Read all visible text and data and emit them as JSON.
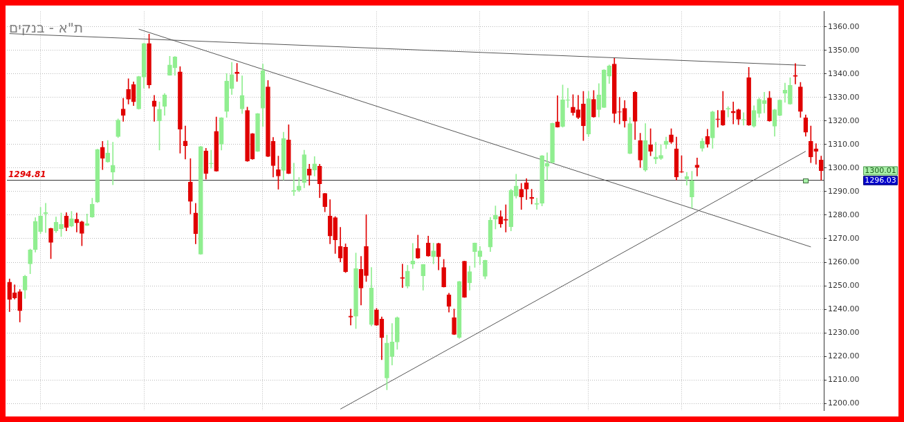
{
  "chart_data": {
    "type": "candlestick",
    "title": "ת\"א - בנקים",
    "categories": [
      null,
      null,
      null,
      null,
      null,
      null,
      null,
      null,
      null,
      null,
      null,
      null,
      null,
      null,
      null,
      null,
      null,
      null,
      null,
      null,
      null,
      null,
      null,
      null,
      null,
      null,
      null,
      null,
      null,
      null,
      null,
      null,
      null,
      null,
      null,
      null,
      null,
      null,
      null,
      null,
      null,
      null,
      null,
      null,
      null,
      null,
      null,
      null,
      null,
      null,
      null,
      null,
      null,
      null,
      null,
      null,
      null,
      null,
      null,
      null,
      null,
      null,
      null,
      null,
      null,
      null,
      null,
      null,
      null,
      null,
      null,
      null,
      null,
      null,
      null,
      null,
      null,
      null,
      null,
      null,
      null,
      null,
      null,
      null,
      null,
      null,
      null,
      null,
      null,
      null,
      null,
      null,
      null,
      null,
      null,
      null,
      null,
      null,
      null,
      null,
      null,
      null,
      null,
      null,
      null,
      null,
      null,
      null,
      null,
      null,
      null,
      null,
      null,
      null,
      null,
      null,
      null,
      null,
      null,
      null,
      null,
      null,
      null,
      null,
      null,
      null,
      null,
      null,
      null,
      null,
      null,
      null,
      null,
      null,
      null,
      null,
      null,
      null,
      null,
      null,
      null,
      null,
      null,
      null,
      null,
      null,
      null,
      null,
      null,
      null,
      null,
      null,
      null,
      null,
      null,
      null,
      null,
      null
    ],
    "ohlc": [
      [
        1251.5,
        1252.9,
        1239.0,
        1244.2
      ],
      [
        1247.0,
        1250.4,
        1244.3,
        1244.8
      ],
      [
        1247.5,
        1248.4,
        1234.6,
        1239.4
      ],
      [
        1248.1,
        1254.5,
        1244.6,
        1254.0
      ],
      [
        1259.3,
        1265.6,
        1255.1,
        1265.3
      ],
      [
        1265.4,
        1278.9,
        1264.3,
        1277.4
      ],
      [
        1273.0,
        1283.3,
        1272.2,
        1279.6
      ],
      [
        1280.5,
        1285.0,
        1272.6,
        1281.1
      ],
      [
        1274.3,
        1274.5,
        1261.5,
        1268.4
      ],
      [
        1273.3,
        1279.2,
        1272.6,
        1277.0
      ],
      [
        1274.2,
        1280.9,
        1270.9,
        1276.1
      ],
      [
        1279.6,
        1281.1,
        1273.3,
        1274.8
      ],
      [
        1275.3,
        1281.6,
        1275.0,
        1278.5
      ],
      [
        1278.3,
        1280.9,
        1272.8,
        1276.7
      ],
      [
        1277.2,
        1277.5,
        1267.0,
        1272.2
      ],
      [
        1275.6,
        1280.5,
        1275.5,
        1276.4
      ],
      [
        1279.2,
        1287.2,
        1279.0,
        1284.7
      ],
      [
        1285.5,
        1308.0,
        1285.3,
        1307.9
      ],
      [
        1308.8,
        1311.3,
        1299.3,
        1304.1
      ],
      [
        1302.6,
        1311.7,
        1302.4,
        1306.4
      ],
      [
        1298.2,
        1311.0,
        1292.9,
        1301.2
      ],
      [
        1313.4,
        1320.9,
        1312.9,
        1320.4
      ],
      [
        1325.1,
        1329.6,
        1319.8,
        1322.4
      ],
      [
        1333.4,
        1337.9,
        1327.2,
        1329.2
      ],
      [
        1335.5,
        1336.6,
        1326.5,
        1328.1
      ],
      [
        1325.1,
        1339.0,
        1325.0,
        1338.9
      ],
      [
        1338.6,
        1353.0,
        1333.9,
        1352.9
      ],
      [
        1352.9,
        1356.9,
        1333.9,
        1335.3
      ],
      [
        1328.5,
        1330.9,
        1319.8,
        1326.2
      ],
      [
        1320.0,
        1328.1,
        1307.6,
        1325.0
      ],
      [
        1326.2,
        1331.7,
        1322.4,
        1331.1
      ],
      [
        1339.4,
        1347.5,
        1339.4,
        1343.8
      ],
      [
        1342.5,
        1347.4,
        1339.4,
        1347.2
      ],
      [
        1340.9,
        1343.1,
        1306.3,
        1316.5
      ],
      [
        1311.5,
        1317.9,
        1303.8,
        1309.5
      ],
      [
        1294.1,
        1304.0,
        1280.5,
        1285.8
      ],
      [
        1280.9,
        1285.0,
        1267.8,
        1272.1
      ],
      [
        1263.4,
        1309.3,
        1263.3,
        1309.1
      ],
      [
        1307.3,
        1308.4,
        1295.3,
        1297.7
      ],
      [
        1301.8,
        1307.6,
        1299.9,
        1302.1
      ],
      [
        1315.6,
        1321.7,
        1298.6,
        1298.7
      ],
      [
        1310.1,
        1321.5,
        1307.6,
        1321.3
      ],
      [
        1324.0,
        1340.1,
        1321.5,
        1337.0
      ],
      [
        1333.7,
        1344.9,
        1331.2,
        1339.7
      ],
      [
        1340.7,
        1344.5,
        1336.8,
        1340.1
      ],
      [
        1325.1,
        1339.2,
        1323.1,
        1330.9
      ],
      [
        1324.5,
        1325.9,
        1302.8,
        1302.9
      ],
      [
        1314.6,
        1314.7,
        1303.7,
        1303.8
      ],
      [
        1307.1,
        1323.2,
        1307.0,
        1323.1
      ],
      [
        1325.4,
        1344.2,
        1317.6,
        1341.4
      ],
      [
        1334.5,
        1337.2,
        1304.8,
        1304.9
      ],
      [
        1311.3,
        1313.0,
        1296.2,
        1301.0
      ],
      [
        1299.3,
        1305.1,
        1291.0,
        1296.6
      ],
      [
        1299.0,
        1315.2,
        1294.9,
        1312.6
      ],
      [
        1311.9,
        1318.4,
        1297.6,
        1297.7
      ],
      [
        1290.0,
        1302.1,
        1288.3,
        1290.5
      ],
      [
        1290.5,
        1296.0,
        1290.0,
        1292.4
      ],
      [
        1293.8,
        1307.6,
        1291.6,
        1305.7
      ],
      [
        1299.6,
        1301.6,
        1292.7,
        1296.9
      ],
      [
        1299.1,
        1304.9,
        1296.6,
        1301.8
      ],
      [
        1300.8,
        1301.6,
        1287.4,
        1293.3
      ],
      [
        1289.2,
        1289.3,
        1281.4,
        1283.6
      ],
      [
        1279.6,
        1286.6,
        1267.8,
        1271.1
      ],
      [
        1278.9,
        1279.4,
        1263.7,
        1269.5
      ],
      [
        1266.7,
        1274.8,
        1260.1,
        1261.7
      ],
      [
        1266.4,
        1267.8,
        1255.6,
        1255.9
      ],
      [
        1237.1,
        1240.1,
        1233.3,
        1236.7
      ],
      [
        1237.0,
        1263.9,
        1231.8,
        1257.3
      ],
      [
        1257.0,
        1262.5,
        1241.8,
        1249.0
      ],
      [
        1266.7,
        1280.2,
        1251.8,
        1254.3
      ],
      [
        1233.5,
        1257.8,
        1232.9,
        1249.0
      ],
      [
        1239.8,
        1240.4,
        1233.1,
        1233.2
      ],
      [
        1235.9,
        1236.8,
        1218.6,
        1227.9
      ],
      [
        1210.8,
        1229.1,
        1205.8,
        1225.7
      ],
      [
        1219.9,
        1234.0,
        1216.3,
        1226.1
      ],
      [
        1226.1,
        1236.8,
        1223.0,
        1236.5
      ],
      [
        1253.5,
        1259.2,
        1249.2,
        1253.1
      ],
      [
        1249.8,
        1258.7,
        1249.0,
        1256.2
      ],
      [
        1259.2,
        1268.0,
        1257.3,
        1260.6
      ],
      [
        1265.8,
        1271.5,
        1261.6,
        1261.7
      ],
      [
        1254.2,
        1259.1,
        1248.1,
        1259.0
      ],
      [
        1268.1,
        1271.1,
        1262.5,
        1262.6
      ],
      [
        1262.3,
        1268.1,
        1259.3,
        1264.8
      ],
      [
        1268.0,
        1268.1,
        1256.7,
        1262.3
      ],
      [
        1257.8,
        1261.2,
        1249.4,
        1249.5
      ],
      [
        1246.2,
        1246.8,
        1238.8,
        1241.2
      ],
      [
        1236.5,
        1240.1,
        1229.2,
        1229.3
      ],
      [
        1228.0,
        1251.9,
        1227.6,
        1251.8
      ],
      [
        1260.4,
        1260.5,
        1245.0,
        1245.1
      ],
      [
        1251.2,
        1258.4,
        1248.1,
        1256.0
      ],
      [
        1264.5,
        1268.2,
        1257.8,
        1268.1
      ],
      [
        1262.3,
        1266.7,
        1259.0,
        1264.8
      ],
      [
        1254.0,
        1260.9,
        1252.9,
        1260.8
      ],
      [
        1266.4,
        1279.1,
        1264.5,
        1277.8
      ],
      [
        1278.3,
        1283.9,
        1274.1,
        1280.0
      ],
      [
        1279.4,
        1281.9,
        1274.8,
        1276.3
      ],
      [
        1278.3,
        1284.4,
        1272.8,
        1277.8
      ],
      [
        1275.0,
        1291.0,
        1273.3,
        1290.5
      ],
      [
        1288.1,
        1297.4,
        1287.2,
        1292.4
      ],
      [
        1291.0,
        1293.5,
        1282.4,
        1287.7
      ],
      [
        1293.8,
        1295.5,
        1286.6,
        1291.0
      ],
      [
        1287.5,
        1291.0,
        1284.7,
        1287.0
      ],
      [
        1284.6,
        1287.2,
        1282.4,
        1285.0
      ],
      [
        1285.0,
        1305.4,
        1283.9,
        1305.2
      ],
      [
        1300.7,
        1306.5,
        1294.9,
        1302.1
      ],
      [
        1302.3,
        1319.1,
        1302.1,
        1319.0
      ],
      [
        1319.6,
        1330.7,
        1317.3,
        1317.4
      ],
      [
        1317.6,
        1335.3,
        1317.3,
        1329.0
      ],
      [
        1328.7,
        1333.9,
        1325.7,
        1329.0
      ],
      [
        1325.9,
        1331.2,
        1322.4,
        1323.5
      ],
      [
        1324.8,
        1330.9,
        1320.9,
        1321.5
      ],
      [
        1327.2,
        1332.6,
        1311.7,
        1317.9
      ],
      [
        1314.5,
        1332.6,
        1313.4,
        1329.5
      ],
      [
        1329.2,
        1332.9,
        1321.5,
        1321.7
      ],
      [
        1324.8,
        1335.9,
        1321.7,
        1331.1
      ],
      [
        1325.7,
        1341.8,
        1325.6,
        1341.7
      ],
      [
        1339.0,
        1343.8,
        1335.9,
        1343.4
      ],
      [
        1344.2,
        1346.6,
        1319.3,
        1323.1
      ],
      [
        1323.9,
        1330.1,
        1318.7,
        1323.7
      ],
      [
        1325.4,
        1328.7,
        1317.3,
        1320.0
      ],
      [
        1306.2,
        1321.5,
        1306.0,
        1318.9
      ],
      [
        1332.2,
        1332.6,
        1312.1,
        1319.8
      ],
      [
        1311.7,
        1314.8,
        1300.2,
        1303.4
      ],
      [
        1299.1,
        1318.9,
        1298.6,
        1311.7
      ],
      [
        1309.9,
        1316.7,
        1305.2,
        1307.1
      ],
      [
        1303.8,
        1311.0,
        1301.8,
        1304.7
      ],
      [
        1304.0,
        1309.9,
        1303.6,
        1305.4
      ],
      [
        1309.9,
        1313.2,
        1308.2,
        1311.5
      ],
      [
        1314.1,
        1316.7,
        1310.4,
        1311.0
      ],
      [
        1308.2,
        1313.2,
        1294.9,
        1296.2
      ],
      [
        1298.5,
        1305.2,
        1298.1,
        1298.2
      ],
      [
        1295.3,
        1298.2,
        1292.7,
        1296.4
      ],
      [
        1287.7,
        1298.6,
        1283.0,
        1294.6
      ],
      [
        1301.3,
        1304.3,
        1296.6,
        1300.2
      ],
      [
        1308.4,
        1312.6,
        1307.1,
        1311.5
      ],
      [
        1313.5,
        1316.5,
        1308.8,
        1310.1
      ],
      [
        1312.8,
        1324.2,
        1308.4,
        1323.9
      ],
      [
        1320.9,
        1324.5,
        1317.3,
        1320.6
      ],
      [
        1324.5,
        1332.6,
        1318.1,
        1318.2
      ],
      [
        1325.0,
        1326.1,
        1321.7,
        1325.4
      ],
      [
        1324.1,
        1328.1,
        1318.7,
        1323.4
      ],
      [
        1324.8,
        1325.1,
        1318.4,
        1320.7
      ],
      [
        1320.4,
        1323.5,
        1318.2,
        1320.7
      ],
      [
        1338.4,
        1342.8,
        1318.1,
        1318.2
      ],
      [
        1317.8,
        1326.5,
        1317.3,
        1324.5
      ],
      [
        1323.1,
        1329.8,
        1321.5,
        1329.2
      ],
      [
        1327.3,
        1332.2,
        1323.4,
        1328.7
      ],
      [
        1329.8,
        1332.6,
        1319.8,
        1320.0
      ],
      [
        1317.8,
        1325.0,
        1313.5,
        1324.8
      ],
      [
        1322.3,
        1329.0,
        1322.1,
        1328.9
      ],
      [
        1331.8,
        1336.1,
        1327.9,
        1333.1
      ],
      [
        1327.2,
        1338.4,
        1327.0,
        1335.1
      ],
      [
        1339.4,
        1344.4,
        1335.7,
        1338.9
      ],
      [
        1334.5,
        1336.4,
        1321.5,
        1324.0
      ],
      [
        1321.3,
        1322.6,
        1313.5,
        1315.2
      ],
      [
        1311.3,
        1317.9,
        1302.3,
        1304.7
      ],
      [
        1308.2,
        1310.4,
        1301.6,
        1307.1
      ],
      [
        1303.4,
        1305.1,
        1294.9,
        1298.8
      ]
    ],
    "colors": [
      "#e00000",
      "#e00000",
      "#e00000",
      "#90ee90",
      "#90ee90",
      "#90ee90",
      "#90ee90",
      "#90ee90",
      "#e00000",
      "#90ee90",
      "#90ee90",
      "#e00000",
      "#90ee90",
      "#e00000",
      "#e00000",
      "#90ee90",
      "#90ee90",
      "#90ee90",
      "#e00000",
      "#90ee90",
      "#90ee90",
      "#90ee90",
      "#e00000",
      "#e00000",
      "#e00000",
      "#90ee90",
      "#90ee90",
      "#e00000",
      "#e00000",
      "#90ee90",
      "#90ee90",
      "#90ee90",
      "#90ee90",
      "#e00000",
      "#e00000",
      "#e00000",
      "#e00000",
      "#90ee90",
      "#e00000",
      "#90ee90",
      "#e00000",
      "#90ee90",
      "#90ee90",
      "#90ee90",
      "#e00000",
      "#90ee90",
      "#e00000",
      "#e00000",
      "#90ee90",
      "#90ee90",
      "#e00000",
      "#e00000",
      "#e00000",
      "#90ee90",
      "#e00000",
      "#90ee90",
      "#90ee90",
      "#90ee90",
      "#e00000",
      "#90ee90",
      "#e00000",
      "#e00000",
      "#e00000",
      "#e00000",
      "#e00000",
      "#e00000",
      "#e00000",
      "#90ee90",
      "#e00000",
      "#e00000",
      "#90ee90",
      "#e00000",
      "#e00000",
      "#90ee90",
      "#90ee90",
      "#90ee90",
      "#e00000",
      "#90ee90",
      "#90ee90",
      "#e00000",
      "#90ee90",
      "#e00000",
      "#90ee90",
      "#e00000",
      "#e00000",
      "#e00000",
      "#e00000",
      "#90ee90",
      "#e00000",
      "#90ee90",
      "#90ee90",
      "#90ee90",
      "#90ee90",
      "#90ee90",
      "#90ee90",
      "#e00000",
      "#e00000",
      "#90ee90",
      "#90ee90",
      "#e00000",
      "#e00000",
      "#e00000",
      "#90ee90",
      "#90ee90",
      "#90ee90",
      "#90ee90",
      "#e00000",
      "#90ee90",
      "#90ee90",
      "#e00000",
      "#e00000",
      "#e00000",
      "#90ee90",
      "#e00000",
      "#90ee90",
      "#90ee90",
      "#90ee90",
      "#e00000",
      "#e00000",
      "#e00000",
      "#90ee90",
      "#e00000",
      "#e00000",
      "#90ee90",
      "#e00000",
      "#90ee90",
      "#90ee90",
      "#90ee90",
      "#e00000",
      "#e00000",
      "#e00000",
      "#90ee90",
      "#90ee90",
      "#e00000",
      "#90ee90",
      "#e00000",
      "#90ee90",
      "#e00000",
      "#e00000",
      "#90ee90",
      "#e00000",
      "#e00000",
      "#90ee90",
      "#e00000",
      "#90ee90",
      "#90ee90",
      "#90ee90",
      "#e00000",
      "#90ee90",
      "#90ee90",
      "#90ee90",
      "#90ee90",
      "#e00000",
      "#e00000",
      "#e00000",
      "#e00000",
      "#e00000",
      "#e00000"
    ],
    "series": [
      {
        "type": "line",
        "color": "#555555",
        "values": [
          1357.1,
          null,
          null,
          null,
          null,
          null,
          null,
          null,
          null,
          null,
          null,
          null,
          null,
          null,
          null,
          null,
          null,
          null,
          null,
          null,
          null,
          null,
          null,
          null,
          null,
          null,
          null,
          null,
          null,
          null,
          null,
          null,
          null,
          null,
          null,
          null,
          null,
          null,
          null,
          null,
          null,
          null,
          null,
          null,
          null,
          null,
          null,
          null,
          null,
          null,
          null,
          null,
          null,
          null,
          null,
          null,
          null,
          null,
          null,
          null,
          null,
          null,
          null,
          null,
          null,
          null,
          null,
          null,
          null,
          null,
          null,
          null,
          null,
          null,
          null,
          null,
          null,
          null,
          null,
          null,
          null,
          null,
          null,
          null,
          null,
          null,
          null,
          null,
          null,
          null,
          null,
          null,
          null,
          null,
          null,
          null,
          null,
          null,
          null,
          null,
          null,
          null,
          null,
          null,
          null,
          null,
          null,
          null,
          null,
          null,
          null,
          null,
          null,
          null,
          null,
          null,
          null,
          null,
          null,
          null,
          null,
          null,
          null,
          null,
          null,
          null,
          null,
          null,
          null,
          null,
          null,
          null,
          null,
          null,
          null,
          null,
          null,
          null,
          null,
          null,
          null,
          null,
          null,
          null,
          null,
          null,
          null,
          null,
          null,
          null,
          null,
          null,
          null,
          null,
          1343.6,
          null,
          null,
          null
        ]
      },
      {
        "type": "line",
        "color": "#555555",
        "values": [
          null,
          null,
          null,
          null,
          null,
          null,
          null,
          null,
          null,
          null,
          null,
          null,
          null,
          null,
          null,
          null,
          null,
          null,
          null,
          null,
          null,
          null,
          null,
          null,
          null,
          1359.0,
          null,
          null,
          null,
          null,
          null,
          null,
          null,
          null,
          null,
          null,
          null,
          null,
          null,
          null,
          null,
          null,
          null,
          null,
          null,
          null,
          null,
          null,
          null,
          null,
          null,
          null,
          null,
          null,
          null,
          null,
          null,
          null,
          null,
          null,
          null,
          null,
          null,
          null,
          null,
          null,
          null,
          null,
          null,
          null,
          null,
          null,
          null,
          null,
          null,
          null,
          null,
          null,
          null,
          null,
          null,
          null,
          null,
          null,
          null,
          null,
          null,
          null,
          null,
          null,
          null,
          null,
          null,
          null,
          null,
          null,
          null,
          null,
          null,
          null,
          null,
          null,
          null,
          null,
          null,
          null,
          null,
          null,
          null,
          null,
          null,
          null,
          null,
          null,
          null,
          null,
          null,
          null,
          null,
          null,
          null,
          null,
          null,
          null,
          null,
          null,
          null,
          null,
          null,
          null,
          null,
          null,
          null,
          null,
          null,
          null,
          null,
          null,
          null,
          null,
          null,
          null,
          null,
          null,
          null,
          null,
          null,
          null,
          null,
          null,
          null,
          null,
          null,
          null,
          null,
          1266.5,
          null,
          null
        ]
      },
      {
        "type": "line",
        "color": "#555555",
        "values": [
          null,
          null,
          null,
          null,
          null,
          null,
          null,
          null,
          null,
          null,
          null,
          null,
          null,
          null,
          null,
          null,
          null,
          null,
          null,
          null,
          null,
          null,
          null,
          null,
          null,
          null,
          null,
          null,
          null,
          null,
          null,
          null,
          null,
          null,
          null,
          null,
          null,
          null,
          null,
          null,
          null,
          null,
          null,
          null,
          null,
          null,
          null,
          null,
          null,
          null,
          null,
          null,
          null,
          null,
          null,
          null,
          null,
          null,
          null,
          null,
          null,
          null,
          null,
          null,
          1197.6,
          null,
          null,
          null,
          null,
          null,
          null,
          null,
          null,
          null,
          null,
          null,
          null,
          null,
          null,
          null,
          null,
          null,
          null,
          null,
          null,
          null,
          null,
          null,
          null,
          null,
          null,
          null,
          null,
          null,
          null,
          null,
          null,
          null,
          null,
          null,
          null,
          null,
          null,
          null,
          null,
          null,
          null,
          null,
          null,
          null,
          null,
          null,
          null,
          null,
          null,
          null,
          null,
          null,
          null,
          null,
          null,
          null,
          null,
          null,
          null,
          null,
          null,
          null,
          null,
          null,
          null,
          null,
          null,
          null,
          null,
          null,
          null,
          null,
          null,
          null,
          null,
          null,
          null,
          null,
          null,
          null,
          null,
          null,
          null,
          null,
          null,
          null,
          null,
          null,
          1307.1,
          null,
          null,
          null
        ]
      }
    ],
    "ylim": [
      1197,
      1366.5
    ],
    "yticks": [
      {
        "value": 1200,
        "label": "1200.00"
      },
      {
        "value": 1210,
        "label": "1210.00"
      },
      {
        "value": 1220,
        "label": "1220.00"
      },
      {
        "value": 1230,
        "label": "1230.00"
      },
      {
        "value": 1240,
        "label": "1240.00"
      },
      {
        "value": 1250,
        "label": "1250.00"
      },
      {
        "value": 1260,
        "label": "1260.00"
      },
      {
        "value": 1270,
        "label": "1270.00"
      },
      {
        "value": 1280,
        "label": "1280.00"
      },
      {
        "value": 1290,
        "label": "1290.00"
      },
      {
        "value": 1300,
        "label": "1300.00"
      },
      {
        "value": 1310,
        "label": "1310.00"
      },
      {
        "value": 1320,
        "label": "1320.00"
      },
      {
        "value": 1330,
        "label": "1330.00"
      },
      {
        "value": 1340,
        "label": "1340.00"
      },
      {
        "value": 1350,
        "label": "1350.00"
      },
      {
        "value": 1360,
        "label": "1360.00"
      }
    ],
    "ref_lines": [
      {
        "axis": "y",
        "value": 1294.81,
        "label": "1294.81",
        "color": "#333333"
      }
    ],
    "annotations": [
      "1300.01",
      "1296.03"
    ],
    "grid": true,
    "tick_labels": "y"
  }
}
